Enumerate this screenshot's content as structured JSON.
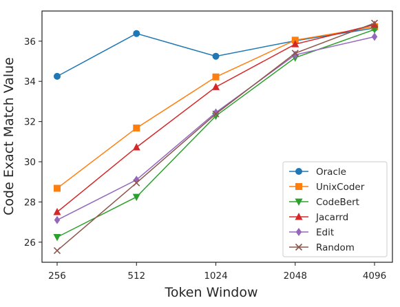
{
  "chart_data": {
    "type": "line",
    "xlabel": "Token Window",
    "ylabel": "Code Exact Match Value",
    "categories": [
      "256",
      "512",
      "1024",
      "2048",
      "4096"
    ],
    "ylim": [
      25,
      37.5
    ],
    "yticks": [
      26,
      28,
      30,
      32,
      34,
      36
    ],
    "grid": false,
    "legend_position": "lower-right",
    "series": [
      {
        "name": "Oracle",
        "color": "#1f77b4",
        "marker": "circle",
        "values": [
          34.25,
          36.38,
          35.25,
          36.02,
          36.65
        ]
      },
      {
        "name": "UnixCoder",
        "color": "#ff7f0e",
        "marker": "square",
        "values": [
          28.68,
          31.68,
          34.22,
          36.05,
          36.72
        ]
      },
      {
        "name": "CodeBert",
        "color": "#2ca02c",
        "marker": "triangle-down",
        "values": [
          26.25,
          28.25,
          32.28,
          35.18,
          36.58
        ]
      },
      {
        "name": "Jacarrd",
        "color": "#d62728",
        "marker": "triangle-up",
        "values": [
          27.5,
          30.72,
          33.72,
          35.85,
          36.82
        ]
      },
      {
        "name": "Edit",
        "color": "#9467bd",
        "marker": "diamond",
        "values": [
          27.1,
          29.1,
          32.45,
          35.32,
          36.22
        ]
      },
      {
        "name": "Random",
        "color": "#8c564b",
        "marker": "x",
        "values": [
          25.58,
          28.95,
          32.38,
          35.4,
          36.9
        ]
      }
    ]
  }
}
